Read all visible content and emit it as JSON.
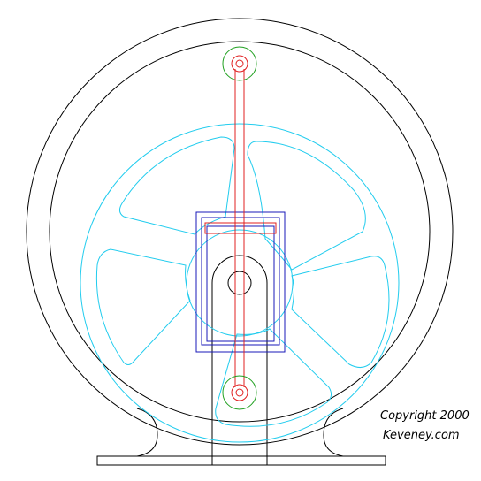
{
  "copyright": {
    "line1": "Copyright 2000",
    "line2": "Keveney.com"
  },
  "colors": {
    "frame": "#000000",
    "flywheel": "#22ccee",
    "connecting_rod": "#e02020",
    "pin_circle": "#20a020",
    "yoke": "#1a1ab8"
  }
}
